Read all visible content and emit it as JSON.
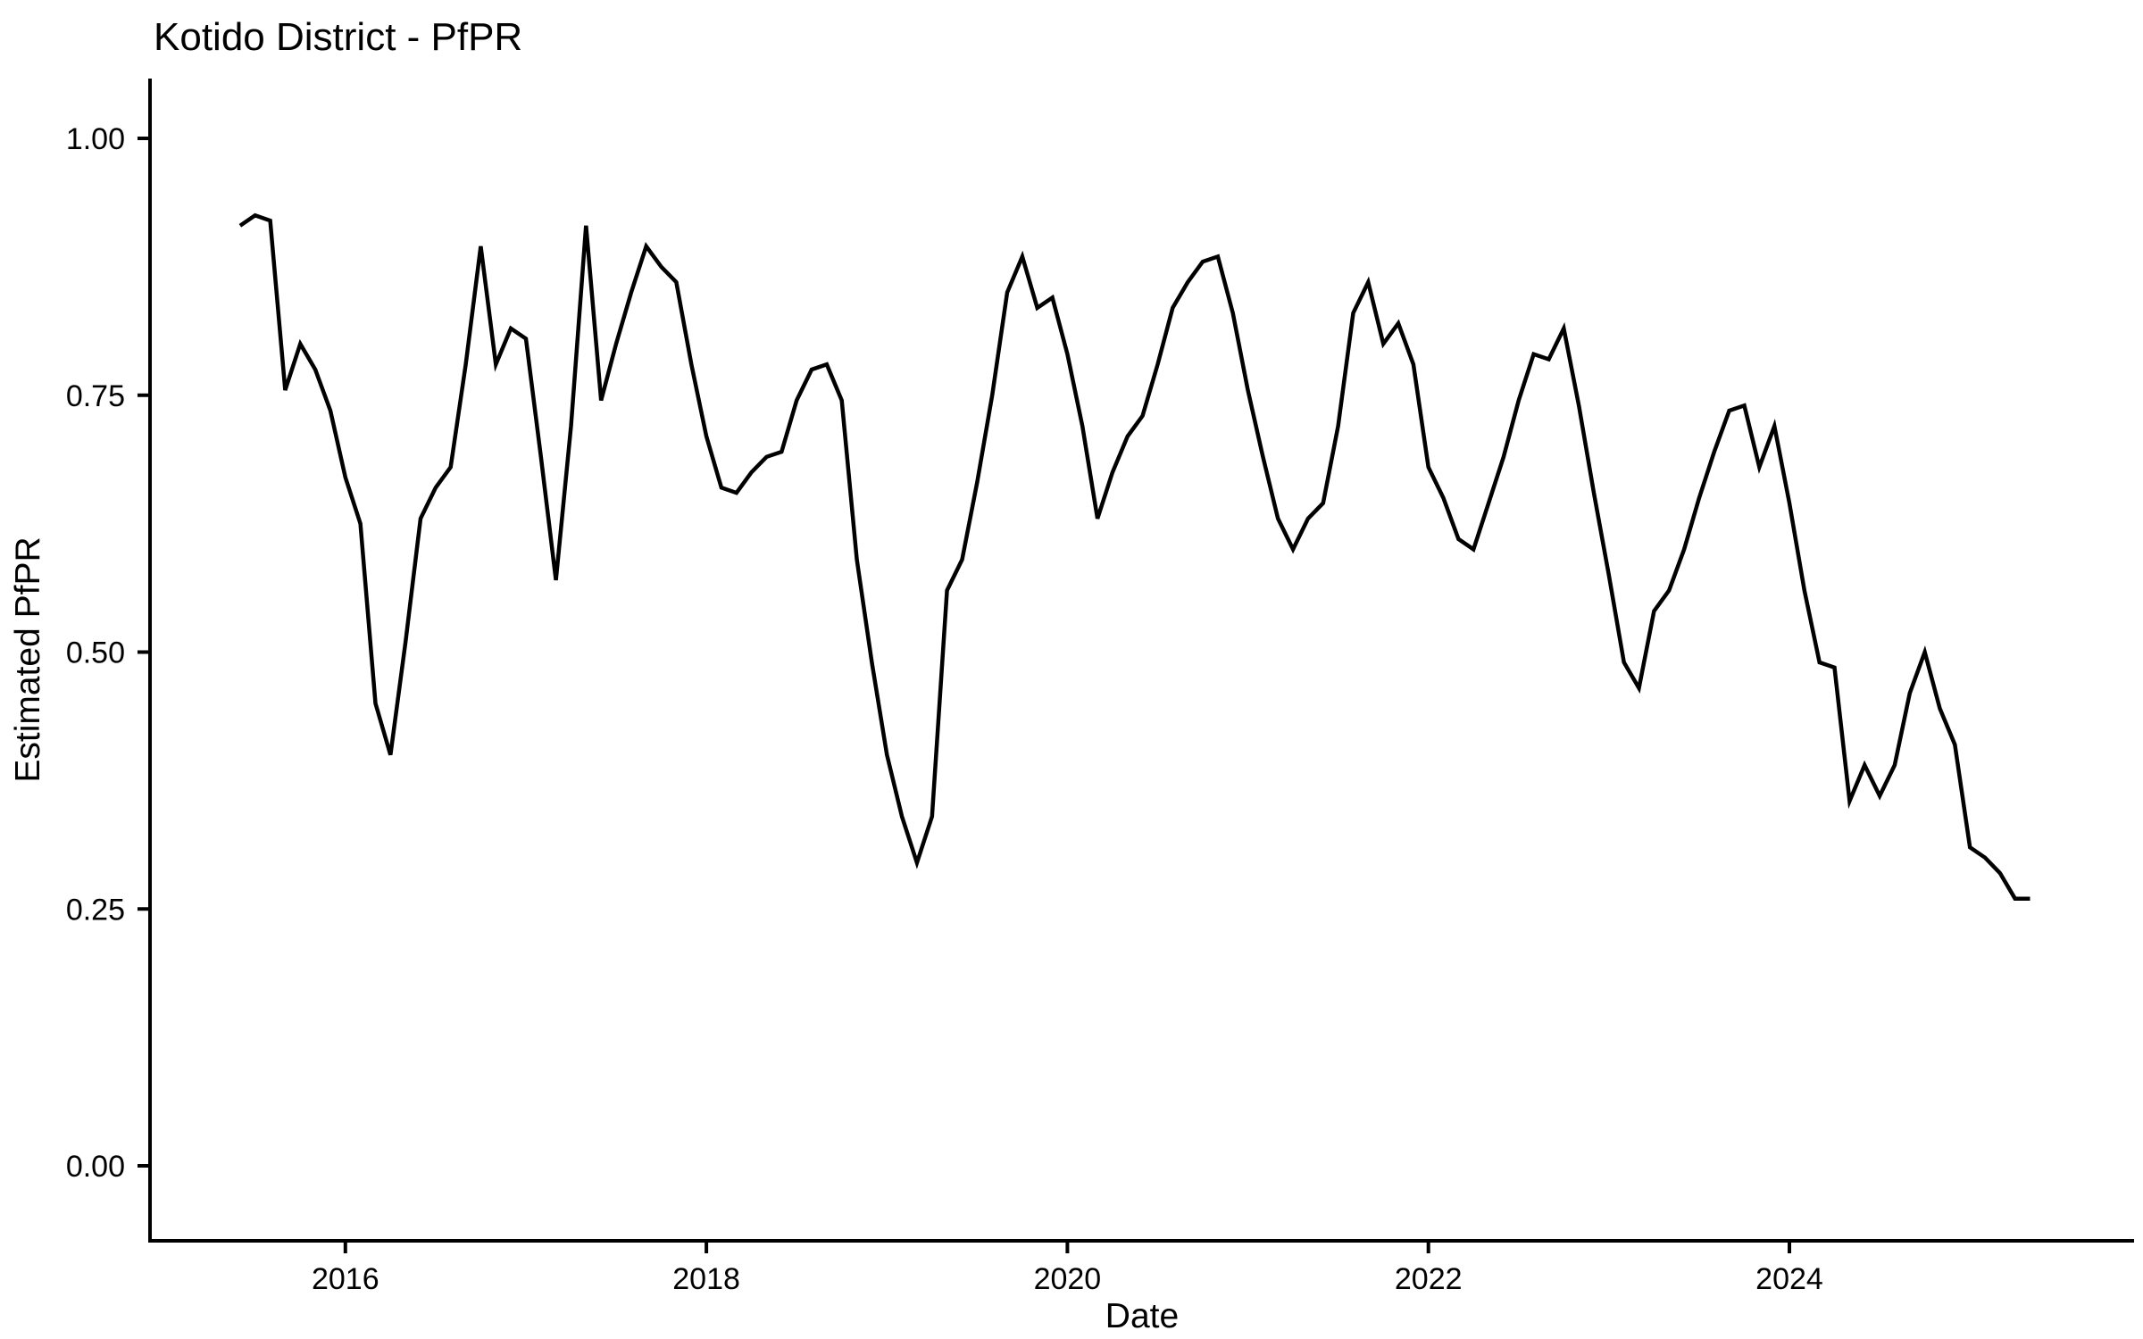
{
  "chart_data": {
    "type": "line",
    "title": "Kotido District - PfPR",
    "xlabel": "Date",
    "ylabel": "Estimated PfPR",
    "ylim": [
      0.0,
      1.0
    ],
    "grid": false,
    "legend": "none",
    "line_color": "#000000",
    "background_color": "#ffffff",
    "y_ticks": [
      {
        "value": 1.0,
        "label": "1.00"
      },
      {
        "value": 0.75,
        "label": "0.75"
      },
      {
        "value": 0.5,
        "label": "0.50"
      },
      {
        "value": 0.25,
        "label": "0.25"
      },
      {
        "value": 0.0,
        "label": "0.00"
      }
    ],
    "x_ticks": [
      {
        "year": 2016,
        "label": "2016"
      },
      {
        "year": 2018,
        "label": "2018"
      },
      {
        "year": 2020,
        "label": "2020"
      },
      {
        "year": 2022,
        "label": "2022"
      },
      {
        "year": 2024,
        "label": "2024"
      }
    ],
    "x": [
      "2015-06",
      "2015-07",
      "2015-08",
      "2015-09",
      "2015-10",
      "2015-11",
      "2015-12",
      "2016-01",
      "2016-02",
      "2016-03",
      "2016-04",
      "2016-05",
      "2016-06",
      "2016-07",
      "2016-08",
      "2016-09",
      "2016-10",
      "2016-11",
      "2016-12",
      "2017-01",
      "2017-02",
      "2017-03",
      "2017-04",
      "2017-05",
      "2017-06",
      "2017-07",
      "2017-08",
      "2017-09",
      "2017-10",
      "2017-11",
      "2017-12",
      "2018-01",
      "2018-02",
      "2018-03",
      "2018-04",
      "2018-05",
      "2018-06",
      "2018-07",
      "2018-08",
      "2018-09",
      "2018-10",
      "2018-11",
      "2018-12",
      "2019-01",
      "2019-02",
      "2019-03",
      "2019-04",
      "2019-05",
      "2019-06",
      "2019-07",
      "2019-08",
      "2019-09",
      "2019-10",
      "2019-11",
      "2019-12",
      "2020-01",
      "2020-02",
      "2020-03",
      "2020-04",
      "2020-05",
      "2020-06",
      "2020-07",
      "2020-08",
      "2020-09",
      "2020-10",
      "2020-11",
      "2020-12",
      "2021-01",
      "2021-02",
      "2021-03",
      "2021-04",
      "2021-05",
      "2021-06",
      "2021-07",
      "2021-08",
      "2021-09",
      "2021-10",
      "2021-11",
      "2021-12",
      "2022-01",
      "2022-02",
      "2022-03",
      "2022-04",
      "2022-05",
      "2022-06",
      "2022-07",
      "2022-08",
      "2022-09",
      "2022-10",
      "2022-11",
      "2022-12",
      "2023-01",
      "2023-02",
      "2023-03",
      "2023-04",
      "2023-05",
      "2023-06",
      "2023-07",
      "2023-08",
      "2023-09",
      "2023-10",
      "2023-11",
      "2023-12",
      "2024-01",
      "2024-02",
      "2024-03",
      "2024-04",
      "2024-05",
      "2024-06",
      "2024-07",
      "2024-08",
      "2024-09",
      "2024-10",
      "2024-11",
      "2024-12",
      "2025-01",
      "2025-02",
      "2025-03",
      "2025-04",
      "2025-05"
    ],
    "values": [
      0.915,
      0.925,
      0.92,
      0.755,
      0.8,
      0.775,
      0.735,
      0.67,
      0.625,
      0.45,
      0.4,
      0.51,
      0.63,
      0.66,
      0.68,
      0.78,
      0.895,
      0.78,
      0.815,
      0.805,
      0.69,
      0.57,
      0.72,
      0.915,
      0.745,
      0.8,
      0.85,
      0.895,
      0.875,
      0.86,
      0.78,
      0.71,
      0.66,
      0.655,
      0.675,
      0.69,
      0.695,
      0.745,
      0.775,
      0.78,
      0.745,
      0.59,
      0.49,
      0.4,
      0.34,
      0.295,
      0.34,
      0.56,
      0.59,
      0.665,
      0.75,
      0.85,
      0.885,
      0.835,
      0.845,
      0.79,
      0.72,
      0.63,
      0.675,
      0.71,
      0.73,
      0.78,
      0.835,
      0.86,
      0.88,
      0.885,
      0.83,
      0.755,
      0.69,
      0.63,
      0.6,
      0.63,
      0.645,
      0.72,
      0.83,
      0.86,
      0.8,
      0.82,
      0.78,
      0.68,
      0.65,
      0.61,
      0.6,
      0.645,
      0.69,
      0.745,
      0.79,
      0.785,
      0.815,
      0.74,
      0.655,
      0.575,
      0.49,
      0.465,
      0.54,
      0.56,
      0.6,
      0.65,
      0.695,
      0.735,
      0.74,
      0.68,
      0.72,
      0.645,
      0.56,
      0.49,
      0.485,
      0.355,
      0.39,
      0.36,
      0.39,
      0.46,
      0.5,
      0.445,
      0.41,
      0.31,
      0.3,
      0.285,
      0.26,
      0.26
    ]
  }
}
